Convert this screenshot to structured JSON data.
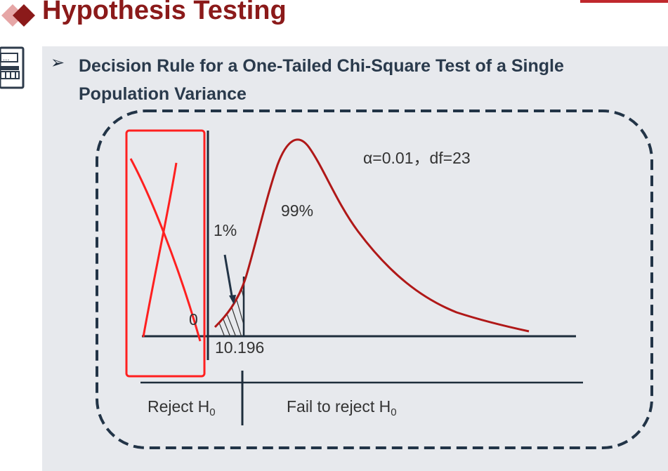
{
  "header": {
    "title": "Hypothesis Testing",
    "accent_color": "#8b1a1a",
    "logo_icon": "red-diamonds-icon",
    "bullet": "➢"
  },
  "slide": {
    "heading": "Decision Rule for a One-Tailed Chi-Square Test of a Single Population Variance"
  },
  "diagram": {
    "params_label": "α=0.01，df=23",
    "left_tail_pct": "1%",
    "body_pct": "99%",
    "origin_label": "0",
    "critical_value": "10.196",
    "reject_label": "Reject H",
    "fail_label": "Fail to reject H",
    "h_subscript": "0",
    "curve_color": "#b01818",
    "annotation_color": "#ff2020"
  }
}
